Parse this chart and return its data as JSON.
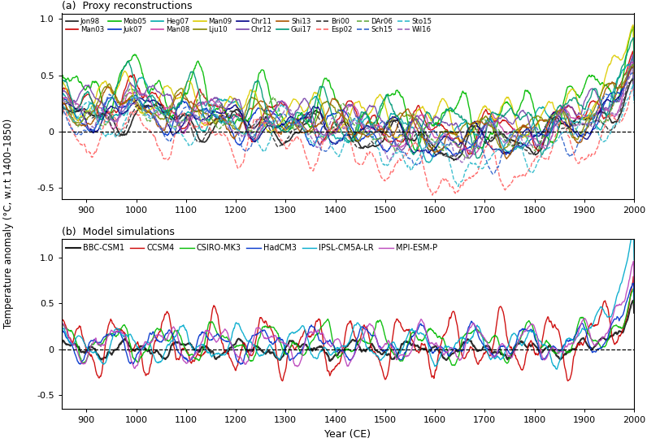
{
  "title_a": "(a)  Proxy reconstructions",
  "title_b": "(b)  Model simulations",
  "ylabel": "Temperature anomaly (°C, w.r.t 1400–1850)",
  "xlabel": "Year (CE)",
  "xlim": [
    850,
    2000
  ],
  "ylim_a": [
    -0.6,
    1.05
  ],
  "ylim_b": [
    -0.65,
    1.2
  ],
  "yticks_a": [
    -0.5,
    0.0,
    0.5,
    1.0
  ],
  "yticks_b": [
    -0.5,
    0.0,
    0.5,
    1.0
  ],
  "xticks": [
    900,
    1000,
    1100,
    1200,
    1300,
    1400,
    1500,
    1600,
    1700,
    1800,
    1900,
    2000
  ],
  "proxy_series": [
    {
      "label": "Jon98",
      "color": "#1a1a1a",
      "ls": "-",
      "lw": 1.2
    },
    {
      "label": "Man03",
      "color": "#cc0000",
      "ls": "-",
      "lw": 1.0
    },
    {
      "label": "Mob05",
      "color": "#00bb00",
      "ls": "-",
      "lw": 1.0
    },
    {
      "label": "Juk07",
      "color": "#0033cc",
      "ls": "-",
      "lw": 1.0
    },
    {
      "label": "Heg07",
      "color": "#00aaaa",
      "ls": "-",
      "lw": 1.0
    },
    {
      "label": "Man08",
      "color": "#cc44aa",
      "ls": "-",
      "lw": 1.0
    },
    {
      "label": "Man09",
      "color": "#ddcc00",
      "ls": "-",
      "lw": 1.0
    },
    {
      "label": "Lju10",
      "color": "#888800",
      "ls": "-",
      "lw": 1.0
    },
    {
      "label": "Chr11",
      "color": "#000088",
      "ls": "-",
      "lw": 1.0
    },
    {
      "label": "Chr12",
      "color": "#7744aa",
      "ls": "-",
      "lw": 1.0
    },
    {
      "label": "Shi13",
      "color": "#aa5500",
      "ls": "-",
      "lw": 1.0
    },
    {
      "label": "Gui17",
      "color": "#009977",
      "ls": "-",
      "lw": 1.0
    },
    {
      "label": "Bri00",
      "color": "#333333",
      "ls": "--",
      "lw": 1.0
    },
    {
      "label": "Esp02",
      "color": "#ff6666",
      "ls": "--",
      "lw": 1.0
    },
    {
      "label": "DAr06",
      "color": "#66aa44",
      "ls": "--",
      "lw": 1.0
    },
    {
      "label": "Sch15",
      "color": "#3366cc",
      "ls": "--",
      "lw": 1.0
    },
    {
      "label": "Sto15",
      "color": "#33bbcc",
      "ls": "--",
      "lw": 1.0
    },
    {
      "label": "Wil16",
      "color": "#9966bb",
      "ls": "--",
      "lw": 1.0
    }
  ],
  "model_series": [
    {
      "label": "BBC-CSM1",
      "color": "#1a1a1a",
      "ls": "-",
      "lw": 1.5
    },
    {
      "label": "CCSM4",
      "color": "#cc0000",
      "ls": "-",
      "lw": 1.0
    },
    {
      "label": "CSIRO-MK3",
      "color": "#00bb00",
      "ls": "-",
      "lw": 1.0
    },
    {
      "label": "HadCM3",
      "color": "#0033cc",
      "ls": "-",
      "lw": 1.0
    },
    {
      "label": "IPSL-CM5A-LR",
      "color": "#00aacc",
      "ls": "-",
      "lw": 1.0
    },
    {
      "label": "MPI-ESM-P",
      "color": "#bb44bb",
      "ls": "-",
      "lw": 1.0
    }
  ]
}
